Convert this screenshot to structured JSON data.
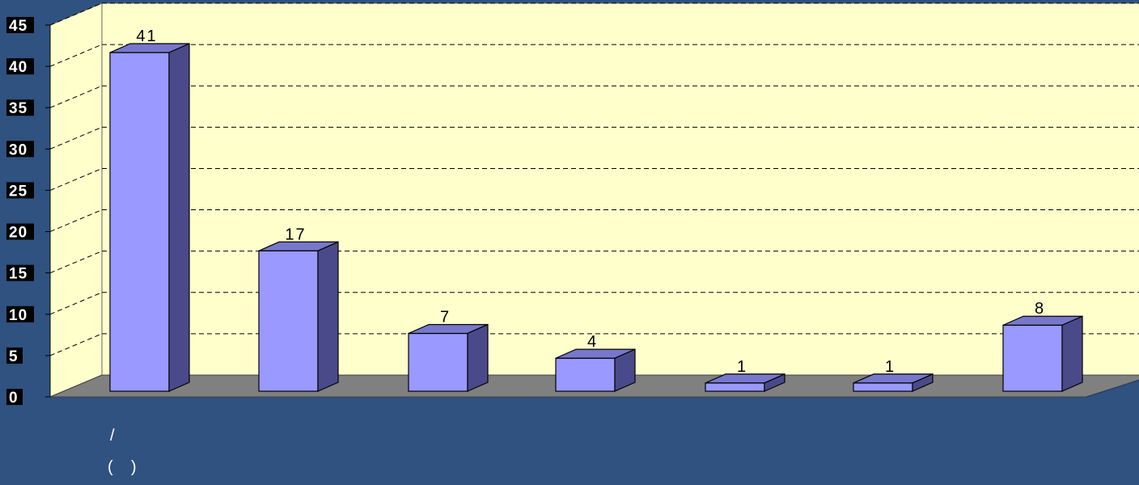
{
  "colors": {
    "background": "#2f5280",
    "plot_wall": "#ffffcc",
    "floor": "#808080",
    "bar_front": "#9999ff",
    "bar_top": "#7777cc",
    "bar_side": "#4a4a8a",
    "tick_label_bg": "#000000",
    "tick_label_fg": "#ffffff"
  },
  "chart_data": {
    "type": "bar",
    "style": "3d-column",
    "categories": [
      "/",
      "(    )",
      "",
      "",
      "",
      "",
      ""
    ],
    "values": [
      41,
      17,
      7,
      4,
      1,
      1,
      8
    ],
    "data_labels": [
      "41",
      "17",
      "7",
      "4",
      "1",
      "1",
      "8"
    ],
    "ylim": [
      0,
      45
    ],
    "yticks": [
      "0",
      "5",
      "10",
      "15",
      "20",
      "25",
      "30",
      "35",
      "40",
      "45"
    ],
    "grid": true,
    "legend": "none",
    "title": "",
    "xlabel": "",
    "ylabel": ""
  }
}
